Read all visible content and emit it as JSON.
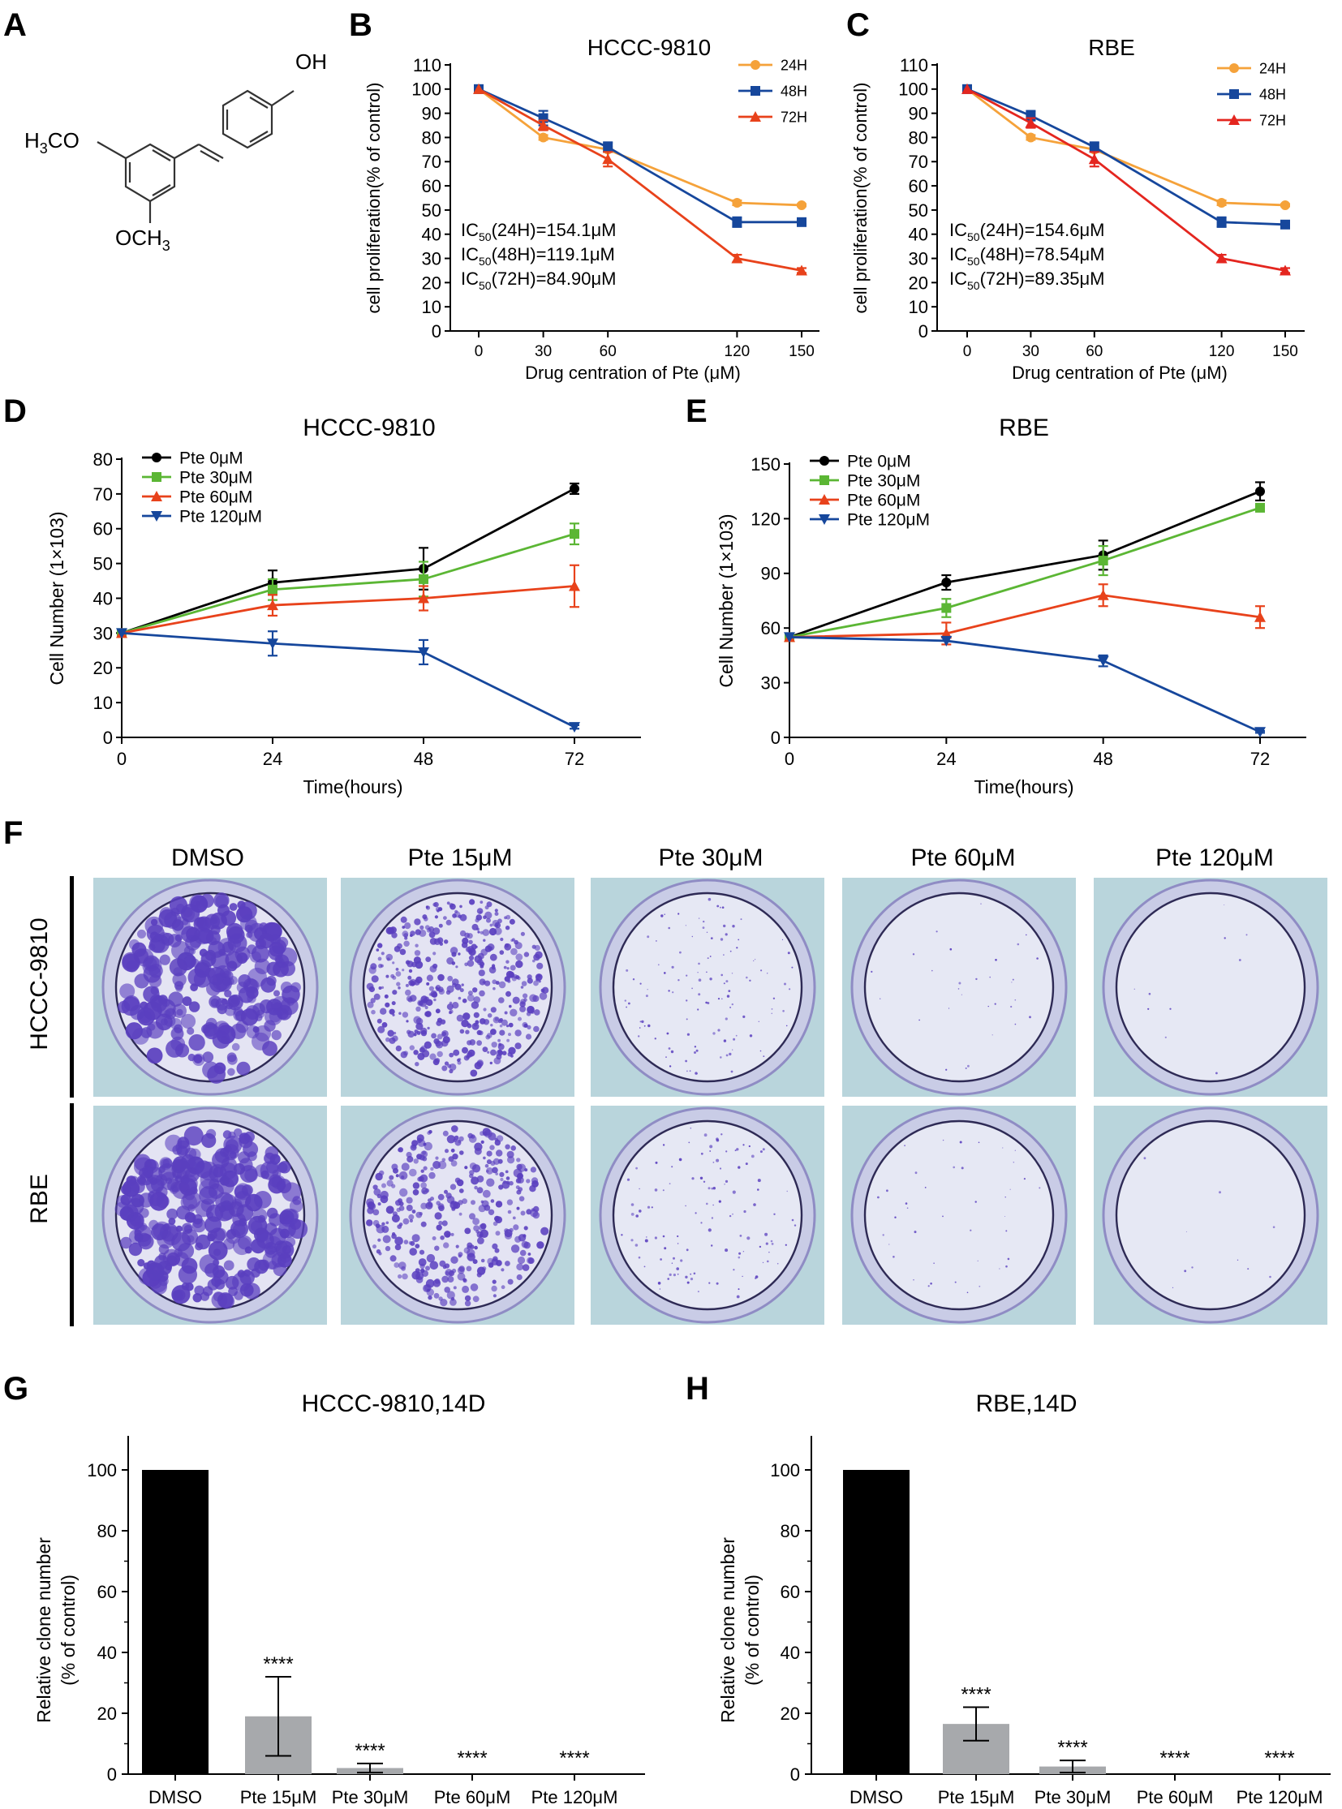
{
  "panel_labels": {
    "a": "A",
    "b": "B",
    "c": "C",
    "d": "D",
    "e": "E",
    "f": "F",
    "g": "G",
    "h": "H"
  },
  "structure": {
    "oh": "OH",
    "h3co_main": "H",
    "h3co_sub": "3",
    "h3co_rest": "CO",
    "och3_main": "OCH",
    "och3_sub": "3"
  },
  "colors": {
    "c24h": "#F5A23A",
    "c48h": "#16479C",
    "c72h_b": "#E8421B",
    "c72h_c": "#E4261F",
    "pte0": "#000000",
    "pte30": "#5BB634",
    "pte60": "#E8421B",
    "pte120": "#16479C",
    "bar_dmso": "#000000",
    "bar_pte": "#A7A9AC",
    "plate_bg": "#B9D5DC",
    "colony": "#5A3FBF"
  },
  "panel_f": {
    "columns": [
      "DMSO",
      "Pte 15μM",
      "Pte 30μM",
      "Pte 60μM",
      "Pte 120μM"
    ],
    "rows": [
      "HCCC-9810",
      "RBE"
    ]
  },
  "chart_data": [
    {
      "id": "B",
      "type": "line",
      "title": "HCCC-9810",
      "xlabel": "Drug centration of Pte (μM)",
      "ylabel": "cell proliferation(% of control)",
      "x": [
        0,
        30,
        60,
        120,
        150
      ],
      "xticks": [
        "0",
        "30",
        "60",
        "120",
        "150"
      ],
      "ylim": [
        0,
        110
      ],
      "yticks": [
        0,
        10,
        20,
        30,
        40,
        50,
        60,
        70,
        80,
        90,
        100,
        110
      ],
      "series": [
        {
          "name": "24H",
          "values": [
            100,
            80,
            75,
            53,
            52
          ],
          "err": [
            0,
            1,
            1,
            1,
            0.5
          ]
        },
        {
          "name": "48H",
          "values": [
            100,
            88,
            76,
            45,
            45
          ],
          "err": [
            0,
            3,
            2,
            2,
            1
          ]
        },
        {
          "name": "72H",
          "values": [
            100,
            85,
            71,
            30,
            25
          ],
          "err": [
            0,
            2,
            3,
            1.5,
            1
          ]
        }
      ],
      "annotations": [
        {
          "pre": "IC",
          "sub": "50",
          "post": "(24H)=154.1μM"
        },
        {
          "pre": "IC",
          "sub": "50",
          "post": "(48H)=119.1μM"
        },
        {
          "pre": "IC",
          "sub": "50",
          "post": "(72H)=84.90μM"
        }
      ]
    },
    {
      "id": "C",
      "type": "line",
      "title": "RBE",
      "xlabel": "Drug centration of Pte (μM)",
      "ylabel": "cell proliferation(% of control)",
      "x": [
        0,
        30,
        60,
        120,
        150
      ],
      "xticks": [
        "0",
        "30",
        "60",
        "120",
        "150"
      ],
      "ylim": [
        0,
        110
      ],
      "yticks": [
        0,
        10,
        20,
        30,
        40,
        50,
        60,
        70,
        80,
        90,
        100,
        110
      ],
      "series": [
        {
          "name": "24H",
          "values": [
            100,
            80,
            75,
            53,
            52
          ],
          "err": [
            0,
            1,
            1,
            1,
            0.5
          ]
        },
        {
          "name": "48H",
          "values": [
            100,
            89,
            76,
            45,
            44
          ],
          "err": [
            0,
            2,
            2,
            2,
            1
          ]
        },
        {
          "name": "72H",
          "values": [
            100,
            86,
            71,
            30,
            25
          ],
          "err": [
            0,
            2,
            3,
            1.5,
            1
          ]
        }
      ],
      "annotations": [
        {
          "pre": "IC",
          "sub": "50",
          "post": "(24H)=154.6μM"
        },
        {
          "pre": "IC",
          "sub": "50",
          "post": "(48H)=78.54μM"
        },
        {
          "pre": "IC",
          "sub": "50",
          "post": "(72H)=89.35μM"
        }
      ]
    },
    {
      "id": "D",
      "type": "line",
      "title": "HCCC-9810",
      "xlabel": "Time(hours)",
      "ylabel": "Cell Number (1×103)",
      "x": [
        0,
        24,
        48,
        72
      ],
      "xticks": [
        "0",
        "24",
        "48",
        "72"
      ],
      "ylim": [
        0,
        80
      ],
      "yticks": [
        0,
        10,
        20,
        30,
        40,
        50,
        60,
        70,
        80
      ],
      "series": [
        {
          "name": "Pte 0μM",
          "values": [
            30,
            44.5,
            48.5,
            71.5
          ],
          "err": [
            0,
            3.5,
            6,
            1.5
          ]
        },
        {
          "name": "Pte 30μM",
          "values": [
            30,
            42.5,
            45.5,
            58.5
          ],
          "err": [
            0,
            3,
            5,
            3
          ]
        },
        {
          "name": "Pte 60μM",
          "values": [
            30,
            38,
            40,
            43.5
          ],
          "err": [
            0,
            3,
            3.5,
            6
          ]
        },
        {
          "name": "Pte 120μM",
          "values": [
            30,
            27,
            24.5,
            3
          ],
          "err": [
            0,
            3.5,
            3.5,
            0.5
          ]
        }
      ]
    },
    {
      "id": "E",
      "type": "line",
      "title": "RBE",
      "xlabel": "Time(hours)",
      "ylabel": "Cell Number (1×103)",
      "x": [
        0,
        24,
        48,
        72
      ],
      "xticks": [
        "0",
        "24",
        "48",
        "72"
      ],
      "ylim": [
        0,
        150
      ],
      "yticks": [
        0,
        30,
        60,
        90,
        120,
        150
      ],
      "series": [
        {
          "name": "Pte 0μM",
          "values": [
            55,
            85,
            100,
            135
          ],
          "err": [
            0,
            4,
            8,
            5
          ]
        },
        {
          "name": "Pte 30μM",
          "values": [
            55,
            71,
            97,
            126
          ],
          "err": [
            0,
            5,
            8,
            2
          ]
        },
        {
          "name": "Pte 60μM",
          "values": [
            55,
            57,
            78,
            66
          ],
          "err": [
            0,
            6,
            6,
            6
          ]
        },
        {
          "name": "Pte 120μM",
          "values": [
            55,
            53,
            42,
            3
          ],
          "err": [
            0,
            0,
            3,
            0.5
          ]
        }
      ]
    },
    {
      "id": "G",
      "type": "bar",
      "title": "HCCC-9810,14D",
      "xlabel": "",
      "ylabel_lines": [
        "Relative clone number",
        "(% of control)"
      ],
      "categories": [
        "DMSO",
        "Pte 15μM",
        "Pte 30μM",
        "Pte 60μM",
        "Pte 120μM"
      ],
      "values": [
        100,
        19,
        2,
        0,
        0
      ],
      "err": [
        0,
        13,
        1.5,
        0,
        0
      ],
      "sig": [
        "",
        "****",
        "****",
        "****",
        "****"
      ],
      "ylim": [
        0,
        110
      ],
      "yticks": [
        0,
        20,
        40,
        60,
        80,
        100
      ]
    },
    {
      "id": "H",
      "type": "bar",
      "title": "RBE,14D",
      "xlabel": "",
      "ylabel_lines": [
        "Relative clone number",
        "(% of control)"
      ],
      "categories": [
        "DMSO",
        "Pte 15μM",
        "Pte 30μM",
        "Pte 60μM",
        "Pte 120μM"
      ],
      "values": [
        100,
        16.5,
        2.5,
        0,
        0
      ],
      "err": [
        0,
        5.5,
        2,
        0,
        0
      ],
      "sig": [
        "",
        "****",
        "****",
        "****",
        "****"
      ],
      "ylim": [
        0,
        110
      ],
      "yticks": [
        0,
        20,
        40,
        60,
        80,
        100
      ]
    }
  ]
}
